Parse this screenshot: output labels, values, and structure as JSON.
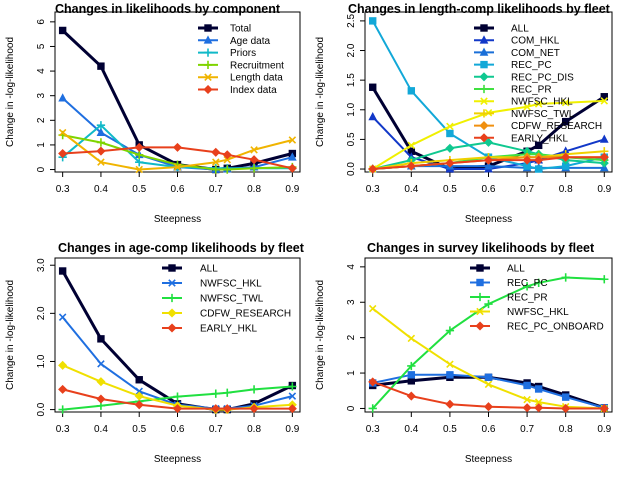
{
  "chart_data": [
    {
      "type": "line",
      "title": "Changes in likelihoods by component",
      "xlabel": "Steepness",
      "ylabel": "Change in -log-likelihood",
      "x": [
        0.3,
        0.4,
        0.5,
        0.6,
        0.7,
        0.73,
        0.8,
        0.9
      ],
      "xticks": [
        0.3,
        0.4,
        0.5,
        0.6,
        0.7,
        0.8,
        0.9
      ],
      "xlim": [
        0.28,
        0.92
      ],
      "yticks": [
        0,
        1,
        2,
        3,
        4,
        5,
        6
      ],
      "ylim": [
        -0.1,
        6.4
      ],
      "legend_position": "top-right",
      "series": [
        {
          "name": "Total",
          "color": "#000033",
          "values": [
            5.65,
            4.2,
            1.0,
            0.2,
            0.0,
            0.05,
            0.25,
            0.65
          ]
        },
        {
          "name": "Age data",
          "color": "#1f6fe0",
          "values": [
            2.9,
            1.5,
            0.6,
            0.1,
            0.0,
            0.02,
            0.1,
            0.5
          ]
        },
        {
          "name": "Priors",
          "color": "#10b9c8",
          "values": [
            0.5,
            1.8,
            0.3,
            0.1,
            0.05,
            0.05,
            0.05,
            0.05
          ]
        },
        {
          "name": "Recruitment",
          "color": "#7fd400",
          "values": [
            1.4,
            1.1,
            0.6,
            0.2,
            0.0,
            0.0,
            0.05,
            0.1
          ]
        },
        {
          "name": "Length data",
          "color": "#f0b400",
          "values": [
            1.5,
            0.3,
            0.0,
            0.1,
            0.3,
            0.4,
            0.8,
            1.2
          ]
        },
        {
          "name": "Index data",
          "color": "#e8401c",
          "values": [
            0.65,
            0.75,
            0.9,
            0.9,
            0.7,
            0.6,
            0.4,
            0.05
          ]
        }
      ]
    },
    {
      "type": "line",
      "title": "Changes in length-comp likelihoods by fleet",
      "xlabel": "Steepness",
      "ylabel": "Change in -log-likelihood",
      "x": [
        0.3,
        0.4,
        0.5,
        0.6,
        0.7,
        0.73,
        0.8,
        0.9
      ],
      "xticks": [
        0.3,
        0.4,
        0.5,
        0.6,
        0.7,
        0.8,
        0.9
      ],
      "xlim": [
        0.28,
        0.92
      ],
      "yticks": [
        0,
        0.5,
        1.0,
        1.5,
        2.0,
        2.5
      ],
      "yticklabels": [
        "0.0",
        "0.5",
        "1.0",
        "1.5",
        "2.0",
        "2.5"
      ],
      "ylim": [
        -0.05,
        2.65
      ],
      "legend_position": "top-right",
      "series": [
        {
          "name": "ALL",
          "color": "#000033",
          "values": [
            1.38,
            0.3,
            0.0,
            0.05,
            0.3,
            0.4,
            0.8,
            1.22
          ]
        },
        {
          "name": "COM_HKL",
          "color": "#1238c8",
          "values": [
            0.88,
            0.2,
            0.0,
            0.0,
            0.1,
            0.15,
            0.3,
            0.5
          ]
        },
        {
          "name": "COM_NET",
          "color": "#1a6fd8",
          "values": [
            0.0,
            0.05,
            0.05,
            0.05,
            0.02,
            0.02,
            0.02,
            0.02
          ]
        },
        {
          "name": "REC_PC",
          "color": "#12a8d8",
          "values": [
            2.5,
            1.32,
            0.6,
            0.2,
            0.05,
            0.0,
            0.05,
            0.2
          ]
        },
        {
          "name": "REC_PC_DIS",
          "color": "#10c890",
          "values": [
            0.0,
            0.15,
            0.35,
            0.45,
            0.3,
            0.25,
            0.15,
            0.1
          ]
        },
        {
          "name": "REC_PR",
          "color": "#40e040",
          "values": [
            0.0,
            0.05,
            0.1,
            0.2,
            0.25,
            0.25,
            0.2,
            0.15
          ]
        },
        {
          "name": "NWFSC_HKL",
          "color": "#f0f000",
          "values": [
            0.0,
            0.4,
            0.72,
            0.95,
            1.05,
            1.1,
            1.12,
            1.15
          ]
        },
        {
          "name": "NWFSC_TWL",
          "color": "#f0d000",
          "values": [
            0.0,
            0.1,
            0.15,
            0.2,
            0.2,
            0.2,
            0.25,
            0.3
          ]
        },
        {
          "name": "CDFW_RESEARCH",
          "color": "#f09010",
          "values": [
            0.0,
            0.05,
            0.1,
            0.15,
            0.2,
            0.2,
            0.2,
            0.2
          ]
        },
        {
          "name": "EARLY_HKL",
          "color": "#e8401c",
          "values": [
            0.0,
            0.05,
            0.1,
            0.15,
            0.15,
            0.15,
            0.2,
            0.2
          ]
        }
      ]
    },
    {
      "type": "line",
      "title": "Changes in age-comp likelihoods by fleet",
      "xlabel": "Steepness",
      "ylabel": "Change in -log-likelihood",
      "x": [
        0.3,
        0.4,
        0.5,
        0.6,
        0.7,
        0.73,
        0.8,
        0.9
      ],
      "xticks": [
        0.3,
        0.4,
        0.5,
        0.6,
        0.7,
        0.8,
        0.9
      ],
      "xlim": [
        0.28,
        0.92
      ],
      "yticks": [
        0,
        1,
        2,
        3
      ],
      "yticklabels": [
        "0.0",
        "1.0",
        "2.0",
        "3.0"
      ],
      "ylim": [
        -0.05,
        3.15
      ],
      "legend_position": "top-right",
      "series": [
        {
          "name": "ALL",
          "color": "#000033",
          "values": [
            2.88,
            1.47,
            0.62,
            0.12,
            0.0,
            0.0,
            0.12,
            0.5
          ]
        },
        {
          "name": "NWFSC_HKL",
          "color": "#1f6fe0",
          "values": [
            1.92,
            0.95,
            0.38,
            0.1,
            0.02,
            0.02,
            0.08,
            0.28
          ]
        },
        {
          "name": "NWFSC_TWL",
          "color": "#20e040",
          "values": [
            0.0,
            0.08,
            0.17,
            0.27,
            0.33,
            0.35,
            0.42,
            0.48
          ]
        },
        {
          "name": "CDFW_RESEARCH",
          "color": "#f0e000",
          "values": [
            0.92,
            0.58,
            0.28,
            0.08,
            0.0,
            0.0,
            0.05,
            0.1
          ]
        },
        {
          "name": "EARLY_HKL",
          "color": "#e8401c",
          "values": [
            0.42,
            0.22,
            0.1,
            0.02,
            0.02,
            0.02,
            0.02,
            0.02
          ]
        }
      ]
    },
    {
      "type": "line",
      "title": "Changes in survey likelihoods by fleet",
      "xlabel": "Steepness",
      "ylabel": "Change in -log-likelihood",
      "x": [
        0.3,
        0.4,
        0.5,
        0.6,
        0.7,
        0.73,
        0.8,
        0.9
      ],
      "xticks": [
        0.3,
        0.4,
        0.5,
        0.6,
        0.7,
        0.8,
        0.9
      ],
      "xlim": [
        0.28,
        0.92
      ],
      "yticks": [
        0,
        1,
        2,
        3,
        4
      ],
      "ylim": [
        -0.1,
        4.25
      ],
      "legend_position": "top-left",
      "series": [
        {
          "name": "ALL",
          "color": "#000033",
          "values": [
            0.65,
            0.78,
            0.88,
            0.88,
            0.72,
            0.62,
            0.38,
            0.02
          ]
        },
        {
          "name": "REC_PC",
          "color": "#1f6fe0",
          "values": [
            0.72,
            0.95,
            0.95,
            0.88,
            0.65,
            0.55,
            0.32,
            0.02
          ]
        },
        {
          "name": "REC_PR",
          "color": "#20e040",
          "values": [
            0.0,
            1.2,
            2.2,
            2.95,
            3.45,
            3.55,
            3.7,
            3.65
          ]
        },
        {
          "name": "NWFSC_HKL",
          "color": "#f0e000",
          "values": [
            2.82,
            1.98,
            1.25,
            0.68,
            0.25,
            0.18,
            0.05,
            0.0
          ]
        },
        {
          "name": "REC_PC_ONBOARD",
          "color": "#e8401c",
          "values": [
            0.75,
            0.35,
            0.12,
            0.05,
            0.02,
            0.02,
            0.0,
            0.0
          ]
        }
      ]
    }
  ]
}
